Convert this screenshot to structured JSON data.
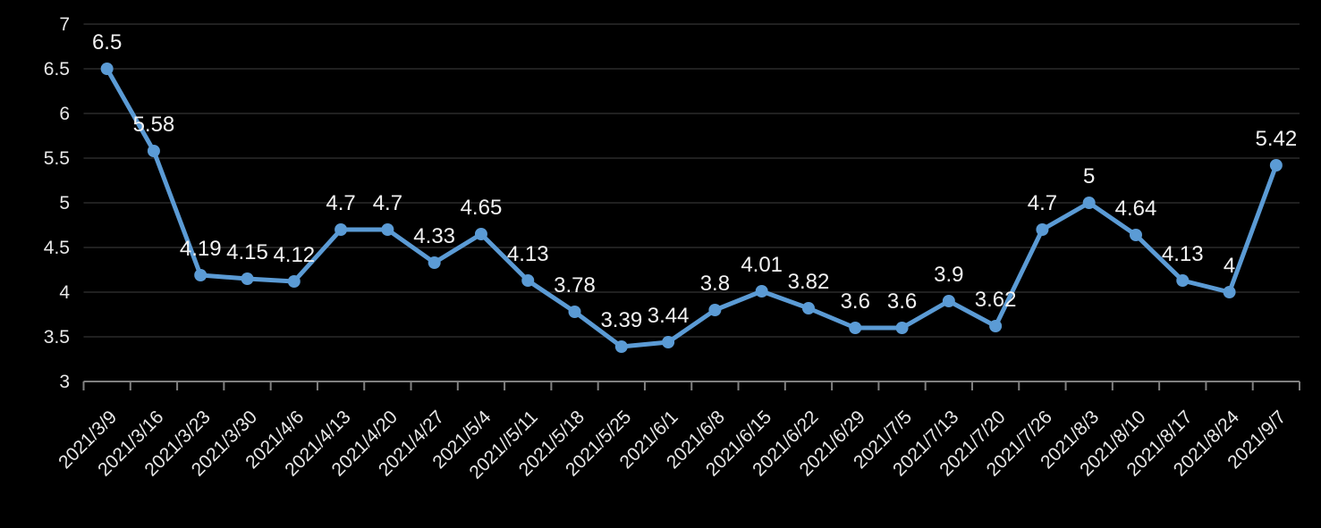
{
  "chart_data": {
    "type": "line",
    "title": "",
    "x": [
      "2021/3/9",
      "2021/3/16",
      "2021/3/23",
      "2021/3/30",
      "2021/4/6",
      "2021/4/13",
      "2021/4/20",
      "2021/4/27",
      "2021/5/4",
      "2021//5/11",
      "2021/5/18",
      "2021/5/25",
      "2021/6/1",
      "2021/6/8",
      "2021/6/15",
      "2021/6/22",
      "2021/6/29",
      "2021/7/5",
      "2021/7/13",
      "2021/7/20",
      "2021/7/26",
      "2021/8/3",
      "2021/8/10",
      "2021/8/17",
      "2021/8/24",
      "2021/9/7"
    ],
    "values": [
      6.5,
      5.58,
      4.19,
      4.15,
      4.12,
      4.7,
      4.7,
      4.33,
      4.65,
      4.13,
      3.78,
      3.39,
      3.44,
      3.8,
      4.01,
      3.82,
      3.6,
      3.6,
      3.9,
      3.62,
      4.7,
      5,
      4.64,
      4.13,
      4,
      5.42
    ],
    "point_labels": [
      "6.5",
      "5.58",
      "4.19",
      "4.15",
      "4.12",
      "4.7",
      "4.7",
      "4.33",
      "4.65",
      "4.13",
      "3.78",
      "3.39",
      "3.44",
      "3.8",
      "4.01",
      "3.82",
      "3.6",
      "3.6",
      "3.9",
      "3.62",
      "4.7",
      "5",
      "4.64",
      "4.13",
      "4",
      "5.42"
    ],
    "y_ticks": [
      7,
      6.5,
      6,
      5.5,
      5,
      4.5,
      4,
      3.5,
      3
    ],
    "y_tick_labels": [
      "7",
      "6.5",
      "6",
      "5.5",
      "5",
      "4.5",
      "4",
      "3.5",
      "3"
    ],
    "ylim": [
      3,
      7
    ],
    "xlabel": "",
    "ylabel": "",
    "grid": true,
    "legend": "none",
    "x_label_rotation": -45
  },
  "colors": {
    "background": "#000000",
    "series_line": "#5B9BD5",
    "marker_fill": "#5B9BD5",
    "gridline": "#2A2A2A",
    "axis_line": "#808080",
    "data_label": "#F2F2F2",
    "axis_label": "#E8E8E8"
  }
}
